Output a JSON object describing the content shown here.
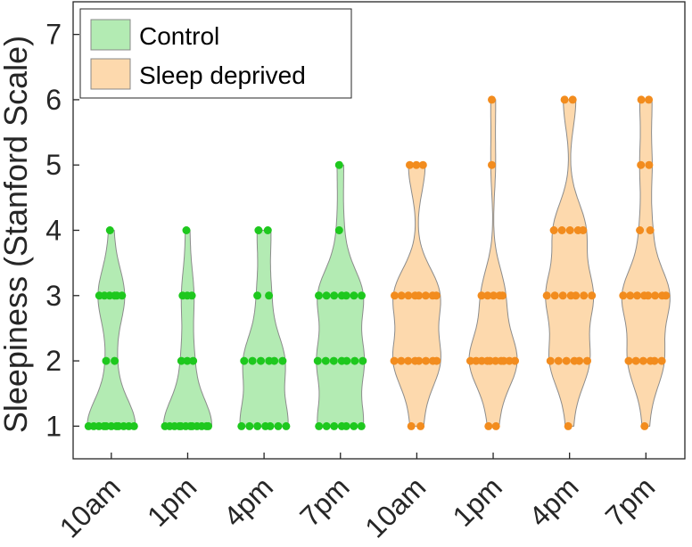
{
  "chart_data": {
    "type": "violin",
    "title": "",
    "xlabel": "",
    "ylabel": "Sleepiness (Stanford Scale)",
    "ylim": [
      0.5,
      7.5
    ],
    "yticks": [
      1,
      2,
      3,
      4,
      5,
      6,
      7
    ],
    "categories": [
      "10am",
      "1pm",
      "4pm",
      "7pm",
      "10am",
      "1pm",
      "4pm",
      "7pm"
    ],
    "grid": false,
    "legend": {
      "position": "top-left"
    },
    "series": [
      {
        "name": "Control",
        "color": "#b3ebb3",
        "dot_color": "#1ec81e",
        "groups": [
          {
            "category_index": 0,
            "label": "10am",
            "values": [
              1,
              1,
              1,
              1,
              1,
              1,
              1,
              1,
              1,
              1,
              1,
              2,
              2,
              3,
              3,
              3,
              3,
              3,
              3,
              4
            ]
          },
          {
            "category_index": 1,
            "label": "1pm",
            "values": [
              1,
              1,
              1,
              1,
              1,
              1,
              1,
              1,
              1,
              1,
              1,
              1,
              2,
              2,
              2,
              3,
              3,
              3,
              4
            ]
          },
          {
            "category_index": 2,
            "label": "4pm",
            "values": [
              1,
              1,
              1,
              1,
              1,
              1,
              1,
              2,
              2,
              2,
              2,
              2,
              2,
              3,
              3,
              4,
              4
            ]
          },
          {
            "category_index": 3,
            "label": "7pm",
            "values": [
              1,
              1,
              1,
              1,
              1,
              1,
              1,
              2,
              2,
              2,
              2,
              2,
              2,
              2,
              3,
              3,
              3,
              3,
              3,
              3,
              3,
              4,
              5
            ]
          }
        ]
      },
      {
        "name": "Sleep deprived",
        "color": "#fdd9ad",
        "dot_color": "#f28c1e",
        "groups": [
          {
            "category_index": 4,
            "label": "10am",
            "values": [
              1,
              1,
              2,
              2,
              2,
              2,
              2,
              2,
              2,
              2,
              3,
              3,
              3,
              3,
              3,
              3,
              3,
              3,
              5,
              5,
              5
            ]
          },
          {
            "category_index": 5,
            "label": "1pm",
            "values": [
              1,
              1,
              2,
              2,
              2,
              2,
              2,
              2,
              2,
              2,
              2,
              2,
              3,
              3,
              3,
              3,
              3,
              5,
              6
            ]
          },
          {
            "category_index": 6,
            "label": "4pm",
            "values": [
              1,
              2,
              2,
              2,
              2,
              2,
              2,
              3,
              3,
              3,
              3,
              3,
              3,
              3,
              4,
              4,
              4,
              4,
              4,
              6,
              6
            ]
          },
          {
            "category_index": 7,
            "label": "7pm",
            "values": [
              1,
              2,
              2,
              2,
              2,
              2,
              2,
              3,
              3,
              3,
              3,
              3,
              3,
              3,
              3,
              4,
              4,
              5,
              5,
              6,
              6
            ]
          }
        ]
      }
    ]
  }
}
